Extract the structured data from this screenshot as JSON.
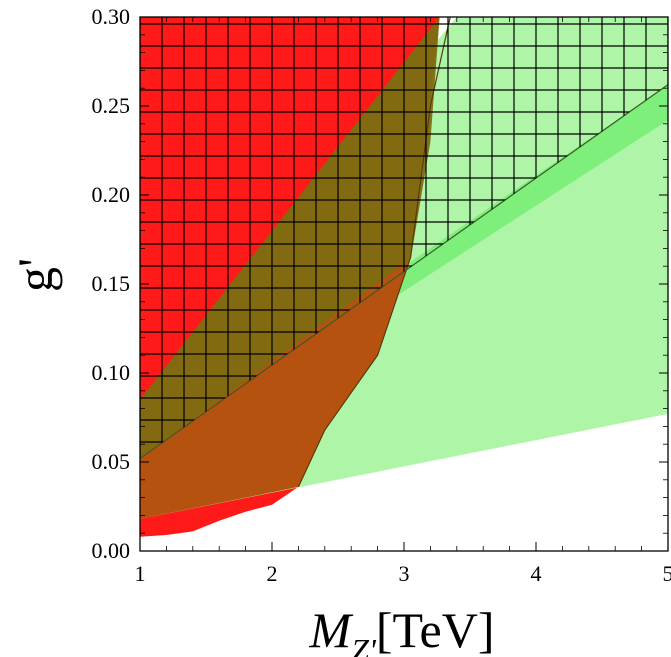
{
  "chart_data": {
    "type": "area",
    "title": "",
    "xlabel": "M",
    "xlabel_subscript": "Z'",
    "xlabel_unit": "[TeV]",
    "ylabel": "g'",
    "xlim": [
      1,
      5
    ],
    "ylim": [
      0,
      0.3
    ],
    "x_ticks": [
      "1",
      "2",
      "3",
      "4",
      "5"
    ],
    "y_ticks": [
      "0.00",
      "0.05",
      "0.10",
      "0.15",
      "0.20",
      "0.25",
      "0.30"
    ],
    "x_tick_values": [
      1,
      2,
      3,
      4,
      5
    ],
    "y_tick_values": [
      0,
      0.05,
      0.1,
      0.15,
      0.2,
      0.25,
      0.3
    ],
    "grid": false,
    "colors": {
      "red_region": "#ff1a1a",
      "light_green_region": "#aef5a8",
      "green_band": "#7eef7a",
      "overlap_brown": "#b5520f",
      "overlap_olive": "#7e6b10",
      "hatch": "#000000"
    },
    "regions": [
      {
        "id": "red",
        "points": [
          [
            1,
            0.3
          ],
          [
            3.27,
            0.3
          ],
          [
            3.05,
            0.165
          ],
          [
            2.8,
            0.11
          ],
          [
            2.4,
            0.068
          ],
          [
            2.2,
            0.036
          ],
          [
            2.0,
            0.026
          ],
          [
            1.8,
            0.022
          ],
          [
            1.6,
            0.017
          ],
          [
            1.4,
            0.011
          ],
          [
            1.2,
            0.009
          ],
          [
            1.0,
            0.008
          ]
        ]
      },
      {
        "id": "light-green",
        "points": [
          [
            1,
            0.018
          ],
          [
            5,
            0.077
          ],
          [
            5,
            0.3
          ],
          [
            3.4,
            0.3
          ],
          [
            1,
            0.085
          ]
        ]
      },
      {
        "id": "green-band",
        "points": [
          [
            1,
            0.05
          ],
          [
            5,
            0.242
          ],
          [
            5,
            0.262
          ],
          [
            1,
            0.058
          ]
        ]
      },
      {
        "id": "brown-overlap",
        "points": [
          [
            1,
            0.085
          ],
          [
            3.27,
            0.3
          ],
          [
            3.27,
            0.3
          ],
          [
            3.05,
            0.165
          ],
          [
            2.8,
            0.11
          ],
          [
            2.4,
            0.068
          ],
          [
            2.2,
            0.036
          ],
          [
            1,
            0.018
          ]
        ]
      },
      {
        "id": "olive-overlap",
        "points": [
          [
            1,
            0.052
          ],
          [
            3.05,
            0.164
          ],
          [
            3.2,
            0.23
          ],
          [
            3.27,
            0.3
          ],
          [
            1,
            0.085
          ]
        ]
      }
    ],
    "exclusion_curve": [
      [
        2.2,
        0.036
      ],
      [
        2.4,
        0.068
      ],
      [
        2.8,
        0.11
      ],
      [
        3.05,
        0.165
      ],
      [
        3.2,
        0.25
      ],
      [
        3.35,
        0.3
      ]
    ],
    "hatched_region": [
      [
        1,
        0.052
      ],
      [
        5,
        0.262
      ],
      [
        5,
        0.3
      ],
      [
        1,
        0.3
      ]
    ]
  }
}
